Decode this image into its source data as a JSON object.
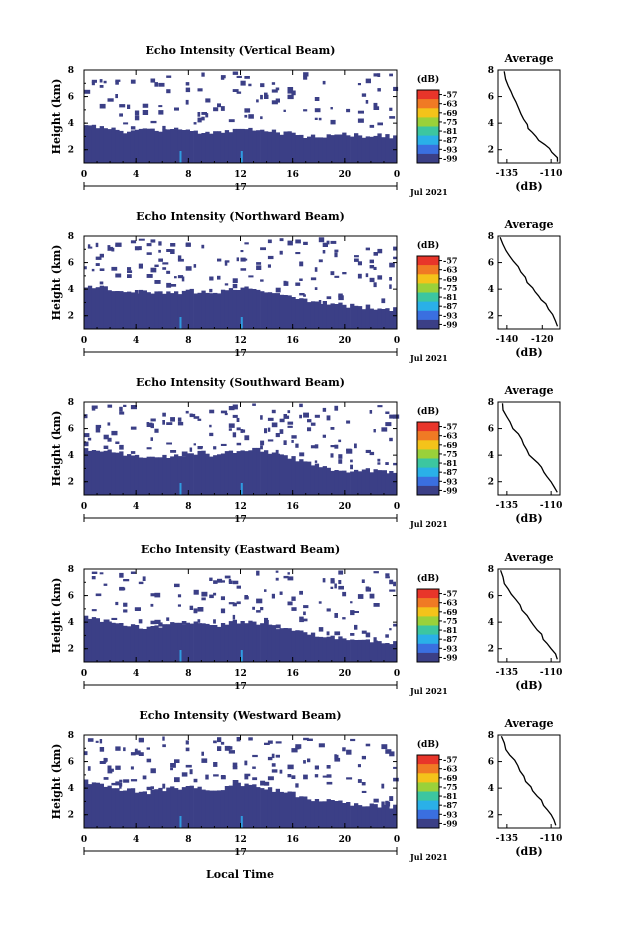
{
  "chart_data": [
    {
      "type": "heatmap",
      "title": "Echo Intensity (Vertical Beam)",
      "ylabel": "Height (km)",
      "x_ticks": [
        "0",
        "4",
        "8",
        "12",
        "16",
        "20",
        "0"
      ],
      "xlim": [
        0,
        24
      ],
      "y_ticks": [
        "2",
        "4",
        "6",
        "8"
      ],
      "ylim": [
        1,
        8
      ],
      "day_label": "17",
      "date_label": "Jul 2021",
      "colorbar": {
        "unit": "(dB)",
        "labels": [
          "-57",
          "-63",
          "-69",
          "-75",
          "-81",
          "-87",
          "-93",
          "-99"
        ]
      },
      "echo_top_km": [
        3.8,
        3.7,
        3.6,
        3.4,
        3.5,
        3.6,
        3.4,
        3.6,
        3.5,
        3.3,
        3.4,
        3.3,
        3.5,
        3.6,
        3.4,
        3.3,
        3.2,
        3.0,
        3.1,
        3.0,
        3.2,
        3.1,
        3.0,
        3.1,
        3.0
      ]
    },
    {
      "type": "line",
      "title": "Average",
      "xlabel": "(dB)",
      "x_ticks": [
        "-135",
        "-110"
      ],
      "xlim": [
        -140,
        -105
      ],
      "y_ticks": [
        "2",
        "4",
        "6",
        "8"
      ],
      "ylim": [
        1,
        8
      ],
      "series": [
        {
          "x": [
            -137,
            -136,
            -134,
            -133,
            -131,
            -130,
            -128,
            -127,
            -125,
            -124,
            -123,
            -121,
            -119,
            -117,
            -114,
            -111,
            -109,
            -107,
            -106
          ],
          "y": [
            7.9,
            7.3,
            6.8,
            6.4,
            6.0,
            5.6,
            5.1,
            4.7,
            4.3,
            3.9,
            3.6,
            3.3,
            3.0,
            2.7,
            2.4,
            2.1,
            1.8,
            1.4,
            1.1
          ]
        }
      ]
    },
    {
      "type": "heatmap",
      "title": "Echo Intensity (Northward Beam)",
      "ylabel": "Height (km)",
      "x_ticks": [
        "0",
        "4",
        "8",
        "12",
        "16",
        "20",
        "0"
      ],
      "xlim": [
        0,
        24
      ],
      "y_ticks": [
        "2",
        "4",
        "6",
        "8"
      ],
      "ylim": [
        1,
        8
      ],
      "day_label": "17",
      "date_label": "Jul 2021",
      "colorbar": {
        "unit": "(dB)",
        "labels": [
          "-57",
          "-63",
          "-69",
          "-75",
          "-81",
          "-87",
          "-93",
          "-99"
        ]
      },
      "echo_top_km": [
        4.3,
        4.2,
        4.0,
        3.9,
        3.8,
        3.7,
        3.8,
        3.7,
        3.9,
        3.8,
        3.7,
        3.9,
        4.1,
        4.2,
        3.9,
        3.7,
        3.5,
        3.2,
        3.0,
        2.9,
        2.8,
        2.7,
        2.6,
        2.6,
        2.5
      ]
    },
    {
      "type": "line",
      "title": "Average",
      "xlabel": "(dB)",
      "x_ticks": [
        "-140",
        "-120"
      ],
      "xlim": [
        -145,
        -110
      ],
      "y_ticks": [
        "2",
        "4",
        "6",
        "8"
      ],
      "ylim": [
        1,
        8
      ],
      "series": [
        {
          "x": [
            -144,
            -142,
            -140,
            -138,
            -136,
            -134,
            -132,
            -130,
            -128,
            -126,
            -124,
            -122,
            -120,
            -118,
            -116,
            -114,
            -112,
            -111
          ],
          "y": [
            7.9,
            7.4,
            6.9,
            6.5,
            6.1,
            5.7,
            5.3,
            4.9,
            4.5,
            4.1,
            3.8,
            3.5,
            3.2,
            2.9,
            2.5,
            2.1,
            1.6,
            1.2
          ]
        }
      ]
    },
    {
      "type": "heatmap",
      "title": "Echo Intensity (Southward Beam)",
      "ylabel": "Height (km)",
      "x_ticks": [
        "0",
        "4",
        "8",
        "12",
        "16",
        "20",
        "0"
      ],
      "xlim": [
        0,
        24
      ],
      "y_ticks": [
        "2",
        "4",
        "6",
        "8"
      ],
      "ylim": [
        1,
        8
      ],
      "day_label": "17",
      "date_label": "Jul 2021",
      "colorbar": {
        "unit": "(dB)",
        "labels": [
          "-57",
          "-63",
          "-69",
          "-75",
          "-81",
          "-87",
          "-93",
          "-99"
        ]
      },
      "echo_top_km": [
        4.5,
        4.4,
        4.3,
        4.1,
        4.0,
        3.9,
        4.0,
        3.9,
        4.1,
        4.2,
        4.0,
        4.2,
        4.4,
        4.5,
        4.3,
        4.0,
        3.8,
        3.5,
        3.2,
        3.0,
        2.9,
        2.8,
        2.9,
        2.7,
        2.6
      ]
    },
    {
      "type": "line",
      "title": "Average",
      "xlabel": "(dB)",
      "x_ticks": [
        "-135",
        "-110"
      ],
      "xlim": [
        -140,
        -105
      ],
      "y_ticks": [
        "2",
        "4",
        "6",
        "8"
      ],
      "ylim": [
        1,
        8
      ],
      "series": [
        {
          "x": [
            -138,
            -137,
            -135,
            -133,
            -131,
            -129,
            -127,
            -125,
            -124,
            -122,
            -120,
            -118,
            -116,
            -114,
            -112,
            -110,
            -108,
            -106
          ],
          "y": [
            7.9,
            7.4,
            6.9,
            6.5,
            6.0,
            5.6,
            5.2,
            4.8,
            4.4,
            4.0,
            3.7,
            3.4,
            3.1,
            2.7,
            2.4,
            2.0,
            1.6,
            1.2
          ]
        }
      ]
    },
    {
      "type": "heatmap",
      "title": "Echo Intensity (Eastward Beam)",
      "ylabel": "Height (km)",
      "x_ticks": [
        "0",
        "4",
        "8",
        "12",
        "16",
        "20",
        "0"
      ],
      "xlim": [
        0,
        24
      ],
      "y_ticks": [
        "2",
        "4",
        "6",
        "8"
      ],
      "ylim": [
        1,
        8
      ],
      "day_label": "17",
      "date_label": "Jul 2021",
      "colorbar": {
        "unit": "(dB)",
        "labels": [
          "-57",
          "-63",
          "-69",
          "-75",
          "-81",
          "-87",
          "-93",
          "-99"
        ]
      },
      "echo_top_km": [
        4.4,
        4.2,
        4.0,
        3.8,
        3.7,
        3.6,
        3.8,
        3.9,
        4.0,
        3.8,
        3.7,
        3.9,
        4.1,
        4.0,
        3.8,
        3.6,
        3.4,
        3.2,
        3.0,
        2.9,
        2.8,
        2.7,
        2.6,
        2.5,
        2.5
      ]
    },
    {
      "type": "line",
      "title": "Average",
      "xlabel": "(dB)",
      "x_ticks": [
        "-135",
        "-110"
      ],
      "xlim": [
        -140,
        -105
      ],
      "y_ticks": [
        "2",
        "4",
        "6",
        "8"
      ],
      "ylim": [
        1,
        8
      ],
      "series": [
        {
          "x": [
            -139,
            -137,
            -136,
            -134,
            -132,
            -130,
            -128,
            -126,
            -124,
            -122,
            -120,
            -118,
            -116,
            -114,
            -112,
            -110,
            -108,
            -107
          ],
          "y": [
            7.9,
            7.4,
            6.9,
            6.5,
            6.1,
            5.7,
            5.3,
            4.9,
            4.5,
            4.1,
            3.8,
            3.4,
            3.1,
            2.7,
            2.4,
            2.0,
            1.6,
            1.2
          ]
        }
      ]
    },
    {
      "type": "heatmap",
      "title": "Echo Intensity (Westward Beam)",
      "ylabel": "Height (km)",
      "x_ticks": [
        "0",
        "4",
        "8",
        "12",
        "16",
        "20",
        "0"
      ],
      "xlim": [
        0,
        24
      ],
      "y_ticks": [
        "2",
        "4",
        "6",
        "8"
      ],
      "ylim": [
        1,
        8
      ],
      "day_label": "17",
      "date_label": "Jul 2021",
      "colorbar": {
        "unit": "(dB)",
        "labels": [
          "-57",
          "-63",
          "-69",
          "-75",
          "-81",
          "-87",
          "-93",
          "-99"
        ]
      },
      "echo_top_km": [
        4.5,
        4.3,
        4.1,
        3.9,
        3.8,
        3.7,
        3.9,
        4.0,
        4.1,
        3.9,
        3.8,
        4.0,
        4.3,
        4.2,
        4.0,
        3.8,
        3.6,
        3.3,
        3.1,
        3.0,
        2.9,
        2.8,
        2.7,
        2.6,
        2.6
      ]
    },
    {
      "type": "line",
      "title": "Average",
      "xlabel": "(dB)",
      "x_ticks": [
        "-135",
        "-110"
      ],
      "xlim": [
        -140,
        -105
      ],
      "y_ticks": [
        "2",
        "4",
        "6",
        "8"
      ],
      "ylim": [
        1,
        8
      ],
      "series": [
        {
          "x": [
            -138,
            -137,
            -135,
            -133,
            -131,
            -129,
            -128,
            -126,
            -124,
            -122,
            -120,
            -118,
            -116,
            -114,
            -112,
            -110,
            -108,
            -107
          ],
          "y": [
            7.9,
            7.4,
            6.9,
            6.5,
            6.1,
            5.7,
            5.3,
            4.9,
            4.5,
            4.1,
            3.8,
            3.4,
            3.1,
            2.7,
            2.4,
            2.0,
            1.6,
            1.2
          ]
        }
      ]
    }
  ],
  "figure": {
    "xlabel": "Local Time",
    "colors": {
      "echo_fill": "#3b3f86",
      "echo_spike": "#2f9be0",
      "axis": "#000000",
      "colorbar": [
        "#e8352a",
        "#f07a24",
        "#f4c31a",
        "#9ad13a",
        "#3cc6a0",
        "#2ab0e8",
        "#3a6fe0",
        "#3b3f86"
      ]
    }
  }
}
